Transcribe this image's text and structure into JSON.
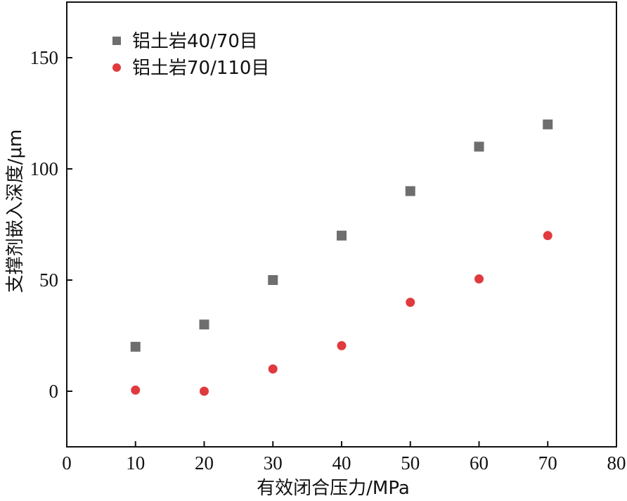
{
  "chart_data": {
    "type": "scatter",
    "xlabel": "有效闭合压力/MPa",
    "ylabel": "支撑剂嵌入深度/μm",
    "xlim": [
      0,
      80
    ],
    "ylim": [
      -25,
      175
    ],
    "x_ticks": [
      0,
      10,
      20,
      30,
      40,
      50,
      60,
      70,
      80
    ],
    "y_ticks": [
      0,
      50,
      100,
      150
    ],
    "grid": false,
    "legend_position": "top-left",
    "series": [
      {
        "name": "铝土岩40/70目",
        "marker": "square",
        "color": "#6e6e6e",
        "x": [
          10,
          20,
          30,
          40,
          50,
          60,
          70
        ],
        "y": [
          20,
          30,
          50,
          70,
          90,
          110,
          120
        ]
      },
      {
        "name": "铝土岩70/110目",
        "marker": "circle",
        "color": "#e03a3e",
        "x": [
          10,
          20,
          30,
          40,
          50,
          60,
          70
        ],
        "y": [
          0.5,
          0,
          10,
          20.5,
          40,
          50.5,
          70
        ]
      }
    ]
  }
}
